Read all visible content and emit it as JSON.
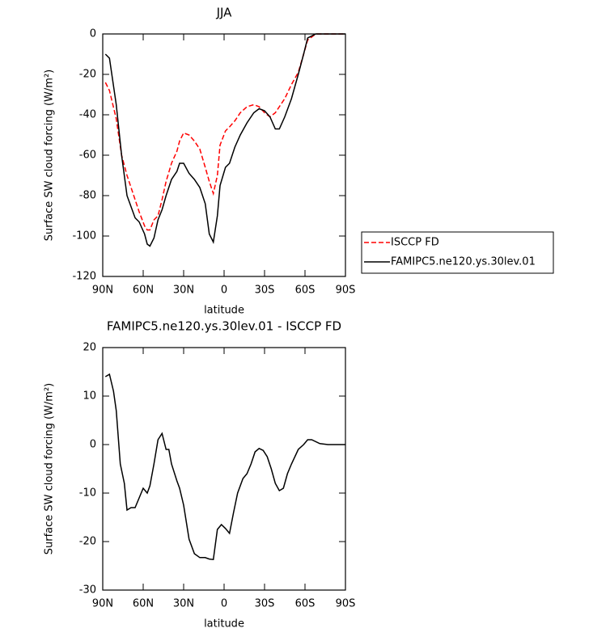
{
  "chart_data": [
    {
      "type": "line",
      "title": "JJA",
      "xlabel": "latitude",
      "ylabel": "Surface SW cloud forcing (W/m²)",
      "x": [
        88,
        85,
        80,
        76,
        72,
        66,
        63,
        59,
        57,
        55,
        52,
        49,
        46,
        43,
        39,
        35,
        33,
        30,
        26,
        22,
        18,
        14,
        11,
        8,
        5,
        3,
        -1,
        -4,
        -8,
        -12,
        -17,
        -22,
        -26,
        -30,
        -34,
        -38,
        -41,
        -45,
        -50,
        -55,
        -59,
        -62,
        -68,
        -90
      ],
      "series": [
        {
          "name": "ISCCP FD",
          "color": "#ff0000",
          "style": "dashed",
          "values": [
            -24,
            -28,
            -42,
            -60,
            -70,
            -82,
            -88,
            -95,
            -97,
            -97,
            -92,
            -90,
            -82,
            -73,
            -64,
            -58,
            -53,
            -49,
            -50,
            -53,
            -57,
            -66,
            -73,
            -79,
            -70,
            -55,
            -48,
            -46,
            -43,
            -39,
            -36,
            -35,
            -36,
            -39,
            -41,
            -39,
            -36,
            -32,
            -25,
            -19,
            -10,
            -3,
            0,
            0
          ]
        },
        {
          "name": "FAMIPC5.ne120.ys.30lev.01",
          "color": "#000000",
          "style": "solid",
          "values": [
            -10,
            -12,
            -35,
            -60,
            -80,
            -91,
            -93,
            -99,
            -104,
            -105,
            -101,
            -92,
            -87,
            -80,
            -72,
            -68,
            -64,
            -64,
            -69,
            -72,
            -76,
            -84,
            -99,
            -103,
            -90,
            -75,
            -66,
            -64,
            -56,
            -50,
            -44,
            -39,
            -37,
            -38,
            -41,
            -47,
            -47,
            -41,
            -32,
            -20,
            -10,
            -2,
            0,
            0
          ]
        }
      ],
      "xlim": [
        90,
        -90
      ],
      "xticks": [
        {
          "value": 90,
          "label": "90N"
        },
        {
          "value": 60,
          "label": "60N"
        },
        {
          "value": 30,
          "label": "30N"
        },
        0,
        {
          "value": -30,
          "label": "30S"
        },
        {
          "value": -60,
          "label": "60S"
        },
        {
          "value": -90,
          "label": "90S"
        }
      ],
      "ylim": [
        -120,
        0
      ],
      "yticks": [
        -120,
        -100,
        -80,
        -60,
        -40,
        -20,
        0
      ],
      "legend": "right"
    },
    {
      "type": "line",
      "title": "FAMIPC5.ne120.ys.30lev.01 - ISCCP FD",
      "xlabel": "latitude",
      "ylabel": "Surface SW cloud forcing (W/m²)",
      "x": [
        88,
        85,
        82,
        80,
        77,
        74,
        72,
        69,
        66,
        63,
        60,
        57,
        55,
        52,
        49,
        46,
        43,
        41,
        39,
        35,
        33,
        30,
        26,
        22,
        18,
        14,
        11,
        8,
        5,
        2,
        -1,
        -4,
        -7,
        -10,
        -14,
        -17,
        -20,
        -23,
        -26,
        -29,
        -32,
        -35,
        -38,
        -41,
        -44,
        -47,
        -50,
        -55,
        -59,
        -62,
        -65,
        -71,
        -77,
        -90
      ],
      "series": [
        {
          "name": "FAMIPC5.ne120.ys.30lev.01 - ISCCP FD",
          "color": "#000000",
          "style": "solid",
          "values": [
            14,
            14.5,
            11,
            7,
            -4,
            -8,
            -13.5,
            -13,
            -13,
            -11,
            -9,
            -10,
            -8.5,
            -4,
            1,
            2.3,
            -1,
            -1,
            -4,
            -7.5,
            -9,
            -12.5,
            -19.5,
            -22.5,
            -23.3,
            -23.3,
            -23.6,
            -23.7,
            -17.5,
            -16.5,
            -17.3,
            -18.3,
            -14,
            -10,
            -7,
            -6,
            -4,
            -1.5,
            -0.8,
            -1.2,
            -2.5,
            -5,
            -8,
            -9.5,
            -9,
            -6,
            -4,
            -1,
            0,
            1,
            1,
            0.2,
            0,
            0
          ]
        }
      ],
      "xlim": [
        90,
        -90
      ],
      "xticks": [
        {
          "value": 90,
          "label": "90N"
        },
        {
          "value": 60,
          "label": "60N"
        },
        {
          "value": 30,
          "label": "30N"
        },
        0,
        {
          "value": -30,
          "label": "30S"
        },
        {
          "value": -60,
          "label": "60S"
        },
        {
          "value": -90,
          "label": "90S"
        }
      ],
      "ylim": [
        -30,
        20
      ],
      "yticks": [
        -30,
        -20,
        -10,
        0,
        10,
        20
      ]
    }
  ]
}
